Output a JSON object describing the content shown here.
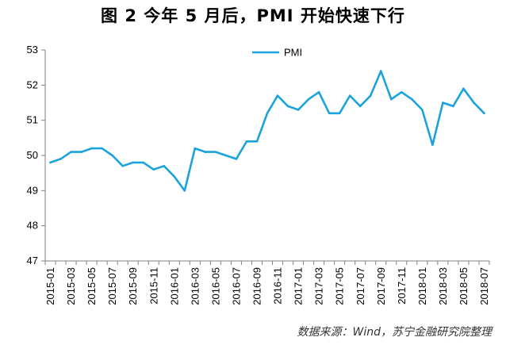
{
  "title": "图 2   今年 5 月后，PMI 开始快速下行",
  "source": "数据来源：Wind，苏宁金融研究院整理",
  "chart_data": {
    "type": "line",
    "title": "图 2   今年 5 月后，PMI 开始快速下行",
    "xlabel": "",
    "ylabel": "",
    "ylim": [
      47,
      53
    ],
    "yticks": [
      47,
      48,
      49,
      50,
      51,
      52,
      53
    ],
    "grid": false,
    "legend_position": "top-center",
    "categories": [
      "2015-01",
      "2015-02",
      "2015-03",
      "2015-04",
      "2015-05",
      "2015-06",
      "2015-07",
      "2015-08",
      "2015-09",
      "2015-10",
      "2015-11",
      "2015-12",
      "2016-01",
      "2016-02",
      "2016-03",
      "2016-04",
      "2016-05",
      "2016-06",
      "2016-07",
      "2016-08",
      "2016-09",
      "2016-10",
      "2016-11",
      "2016-12",
      "2017-01",
      "2017-02",
      "2017-03",
      "2017-04",
      "2017-05",
      "2017-06",
      "2017-07",
      "2017-08",
      "2017-09",
      "2017-10",
      "2017-11",
      "2017-12",
      "2018-01",
      "2018-02",
      "2018-03",
      "2018-04",
      "2018-05",
      "2018-06",
      "2018-07"
    ],
    "xtick_labels": [
      "2015-01",
      "2015-03",
      "2015-05",
      "2015-07",
      "2015-09",
      "2015-11",
      "2016-01",
      "2016-03",
      "2016-05",
      "2016-07",
      "2016-09",
      "2016-11",
      "2017-01",
      "2017-03",
      "2017-05",
      "2017-07",
      "2017-09",
      "2017-11",
      "2018-01",
      "2018-03",
      "2018-05",
      "2018-07"
    ],
    "series": [
      {
        "name": "PMI",
        "color": "#1aa3dc",
        "values": [
          49.8,
          49.9,
          50.1,
          50.1,
          50.2,
          50.2,
          50.0,
          49.7,
          49.8,
          49.8,
          49.6,
          49.7,
          49.4,
          49.0,
          50.2,
          50.1,
          50.1,
          50.0,
          49.9,
          50.4,
          50.4,
          51.2,
          51.7,
          51.4,
          51.3,
          51.6,
          51.8,
          51.2,
          51.2,
          51.7,
          51.4,
          51.7,
          52.4,
          51.6,
          51.8,
          51.6,
          51.3,
          50.3,
          51.5,
          51.4,
          51.9,
          51.5,
          51.2
        ]
      }
    ]
  }
}
